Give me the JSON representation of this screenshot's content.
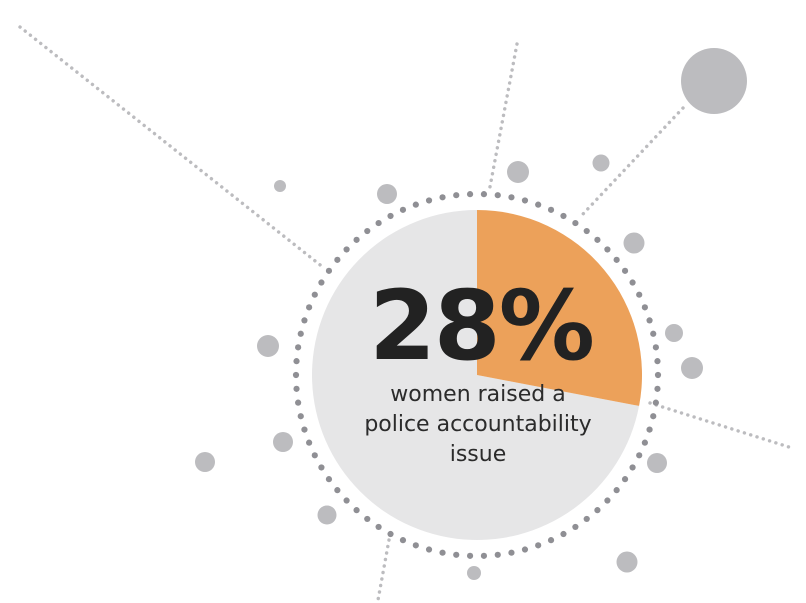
{
  "chart_data": {
    "type": "pie",
    "title": "",
    "slices": [
      {
        "value": 28,
        "color": "#eca15a"
      },
      {
        "value": 72,
        "color": "#e6e6e7"
      }
    ],
    "value_label": "28%",
    "caption_lines": [
      "women raised a",
      "police accountability",
      "issue"
    ]
  },
  "colors": {
    "highlight": "#eca15a",
    "disc": "#e6e6e7",
    "dots": "#bcbcbf",
    "text": "#222222"
  }
}
